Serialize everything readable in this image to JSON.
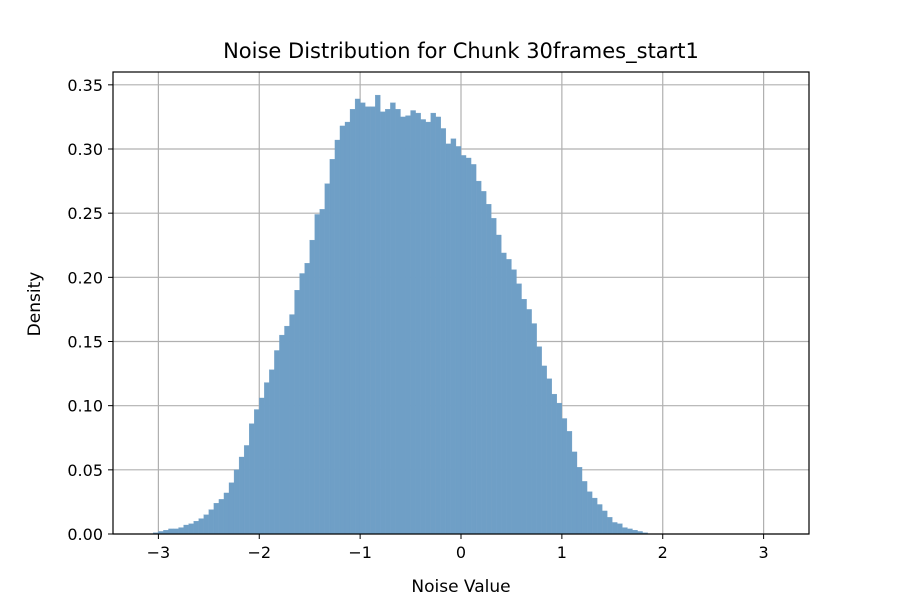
{
  "chart_data": {
    "type": "bar",
    "title": "Noise Distribution for Chunk 30frames_start1",
    "xlabel": "Noise Value",
    "ylabel": "Density",
    "xlim": [
      -3.45,
      3.45
    ],
    "ylim": [
      0.0,
      0.36
    ],
    "xticks": [
      -3,
      -2,
      -1,
      0,
      1,
      2,
      3
    ],
    "xtick_labels": [
      "−3",
      "−2",
      "−1",
      "0",
      "1",
      "2",
      "3"
    ],
    "yticks": [
      0.0,
      0.05,
      0.1,
      0.15,
      0.2,
      0.25,
      0.3,
      0.35
    ],
    "ytick_labels": [
      "0.00",
      "0.05",
      "0.10",
      "0.15",
      "0.20",
      "0.25",
      "0.30",
      "0.35"
    ],
    "grid": true,
    "bar_color": "#6f9fc6",
    "bin_edges_start": -3.05,
    "bin_width": 0.05,
    "values": [
      0.001,
      0.002,
      0.003,
      0.004,
      0.004,
      0.005,
      0.007,
      0.008,
      0.01,
      0.012,
      0.015,
      0.019,
      0.024,
      0.027,
      0.032,
      0.04,
      0.05,
      0.06,
      0.069,
      0.086,
      0.097,
      0.106,
      0.118,
      0.128,
      0.143,
      0.155,
      0.162,
      0.171,
      0.19,
      0.203,
      0.211,
      0.229,
      0.249,
      0.253,
      0.273,
      0.292,
      0.307,
      0.318,
      0.321,
      0.331,
      0.339,
      0.336,
      0.333,
      0.333,
      0.342,
      0.329,
      0.331,
      0.336,
      0.331,
      0.325,
      0.326,
      0.33,
      0.328,
      0.323,
      0.321,
      0.328,
      0.325,
      0.316,
      0.304,
      0.308,
      0.302,
      0.295,
      0.293,
      0.288,
      0.275,
      0.267,
      0.257,
      0.246,
      0.233,
      0.219,
      0.214,
      0.206,
      0.195,
      0.183,
      0.175,
      0.164,
      0.146,
      0.131,
      0.121,
      0.109,
      0.102,
      0.09,
      0.08,
      0.064,
      0.052,
      0.041,
      0.033,
      0.028,
      0.023,
      0.018,
      0.013,
      0.009,
      0.008,
      0.005,
      0.004,
      0.003,
      0.002,
      0.001
    ]
  }
}
